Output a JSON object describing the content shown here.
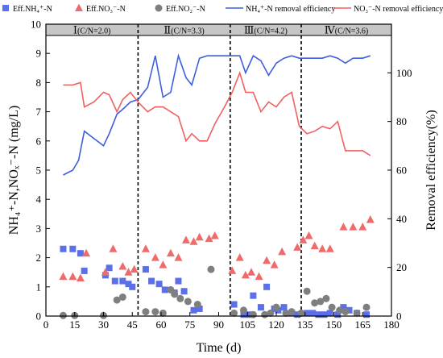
{
  "chart_data": {
    "type": "scatter+line",
    "xlabel": "Time (d)",
    "ylabel": "NH₄⁺-N,NOₓ⁻-N (mg/L)",
    "y2label": "Removal efficiency(%)",
    "xlim": [
      0,
      180
    ],
    "ylim": [
      0,
      10
    ],
    "y2lim": [
      0,
      120
    ],
    "xticks": [
      0,
      15,
      30,
      45,
      60,
      75,
      90,
      105,
      120,
      135,
      150,
      165,
      180
    ],
    "yticks": [
      0,
      1,
      2,
      3,
      4,
      5,
      6,
      7,
      8,
      9,
      10
    ],
    "y2ticks": [
      0,
      20,
      40,
      60,
      80,
      100
    ],
    "phase_boundaries": [
      48,
      96,
      133
    ],
    "phases": [
      {
        "label": "Ⅰ",
        "condition": "(C/N=2.0)",
        "start": 0,
        "end": 48
      },
      {
        "label": "Ⅱ",
        "condition": "(C/N=3.3)",
        "start": 48,
        "end": 96
      },
      {
        "label": "Ⅲ",
        "condition": "(C/N=4.2)",
        "start": 96,
        "end": 133
      },
      {
        "label": "Ⅳ",
        "condition": "(C/N=3.6)",
        "start": 133,
        "end": 180
      }
    ],
    "legend_position": "top",
    "series": [
      {
        "name": "Eff.NH₄⁺-N",
        "kind": "scatter",
        "marker": "square",
        "color": "#5b6fe8",
        "axis": "left",
        "x": [
          9,
          14,
          18,
          20,
          31,
          33,
          36,
          40,
          43,
          45,
          52,
          55,
          59,
          62,
          67,
          69,
          72,
          77,
          80,
          98,
          103,
          106,
          108,
          112,
          115,
          119,
          121,
          124,
          128,
          131,
          136,
          139,
          142,
          145,
          148,
          152,
          155,
          158,
          162,
          167
        ],
        "y": [
          2.3,
          2.3,
          2.15,
          1.55,
          1.4,
          1.65,
          1.2,
          1.2,
          1.1,
          1.0,
          1.6,
          1.2,
          1.1,
          0.9,
          0.8,
          1.2,
          0.85,
          0.2,
          0.25,
          0.4,
          0.05,
          0.05,
          0.7,
          0.3,
          1.0,
          0.25,
          0.2,
          0.3,
          0.1,
          0.05,
          0.1,
          0.1,
          0.05,
          0.05,
          0.1,
          0.05,
          0.3,
          0.2,
          0.1,
          0.05
        ]
      },
      {
        "name": "Eff.NO₃⁻-N",
        "kind": "scatter",
        "marker": "triangle",
        "color": "#ef6b6b",
        "axis": "left",
        "x": [
          9,
          14,
          18,
          21,
          31,
          35,
          40,
          43,
          46,
          52,
          57,
          61,
          65,
          69,
          73,
          77,
          80,
          85,
          88,
          97,
          101,
          104,
          107,
          111,
          115,
          119,
          123,
          131,
          134,
          137,
          140,
          144,
          148,
          155,
          160,
          165,
          169
        ],
        "y": [
          1.35,
          1.35,
          1.3,
          2.15,
          1.5,
          2.3,
          1.7,
          1.5,
          1.6,
          2.3,
          2.0,
          1.75,
          2.15,
          2.0,
          2.6,
          2.55,
          2.7,
          2.65,
          2.75,
          1.55,
          2.0,
          1.4,
          1.5,
          1.35,
          1.9,
          1.75,
          2.2,
          2.35,
          2.6,
          2.75,
          2.4,
          2.3,
          2.3,
          3.05,
          3.05,
          3.05,
          3.3
        ]
      },
      {
        "name": "Eff.NO₂⁻-N",
        "kind": "scatter",
        "marker": "circle",
        "color": "#7f7f7f",
        "axis": "left",
        "x": [
          9,
          15,
          30,
          37,
          40,
          52,
          57,
          61,
          65,
          67,
          70,
          74,
          79,
          86,
          98,
          103,
          108,
          114,
          117,
          120,
          125,
          128,
          133,
          136,
          140,
          143,
          146,
          149,
          153,
          156,
          162,
          167
        ],
        "y": [
          0.02,
          0.02,
          0.02,
          0.55,
          0.65,
          0.15,
          0.15,
          0.1,
          0.9,
          0.75,
          0.6,
          0.5,
          0.4,
          1.6,
          0.1,
          0.2,
          0.05,
          0.05,
          0.1,
          0.3,
          0.1,
          0.15,
          0.1,
          0.85,
          0.45,
          0.5,
          0.6,
          0.3,
          0.2,
          0.15,
          0.1,
          0.3
        ]
      },
      {
        "name": "NH₄⁺-N removal efficiency",
        "kind": "line",
        "color": "#3d5ee0",
        "axis": "right",
        "x": [
          9,
          14,
          17,
          20,
          25,
          30,
          33,
          37,
          40,
          44,
          48,
          53,
          57,
          61,
          65,
          69,
          73,
          76,
          80,
          84,
          88,
          93,
          97,
          101,
          104,
          108,
          112,
          116,
          120,
          124,
          128,
          132,
          136,
          140,
          144,
          148,
          152,
          156,
          160,
          165,
          169
        ],
        "y": [
          58,
          60,
          64,
          76,
          73,
          70,
          75,
          83,
          85,
          88,
          89,
          94,
          107,
          90,
          92,
          107,
          98,
          95,
          106,
          107,
          107,
          107,
          107,
          107,
          100,
          107,
          105,
          99,
          104,
          106,
          107,
          106,
          106,
          106,
          106,
          107,
          106,
          104,
          106,
          106,
          107
        ]
      },
      {
        "name": "NO₃⁻-N removal efficiency",
        "kind": "line",
        "color": "#f06060",
        "axis": "right",
        "x": [
          9,
          14,
          18,
          20,
          25,
          30,
          33,
          37,
          40,
          44,
          48,
          53,
          57,
          61,
          65,
          69,
          73,
          76,
          80,
          84,
          88,
          93,
          97,
          101,
          104,
          108,
          112,
          116,
          120,
          124,
          128,
          132,
          136,
          140,
          144,
          148,
          152,
          156,
          160,
          165,
          169
        ],
        "y": [
          95,
          95,
          96,
          86,
          88,
          92,
          91,
          84,
          89,
          92,
          88,
          84,
          86,
          86,
          84,
          82,
          72,
          75,
          72,
          72,
          79,
          86,
          92,
          100,
          92,
          92,
          84,
          88,
          86,
          90,
          92,
          78,
          75,
          76,
          78,
          77,
          80,
          68,
          68,
          68,
          66
        ]
      }
    ]
  }
}
